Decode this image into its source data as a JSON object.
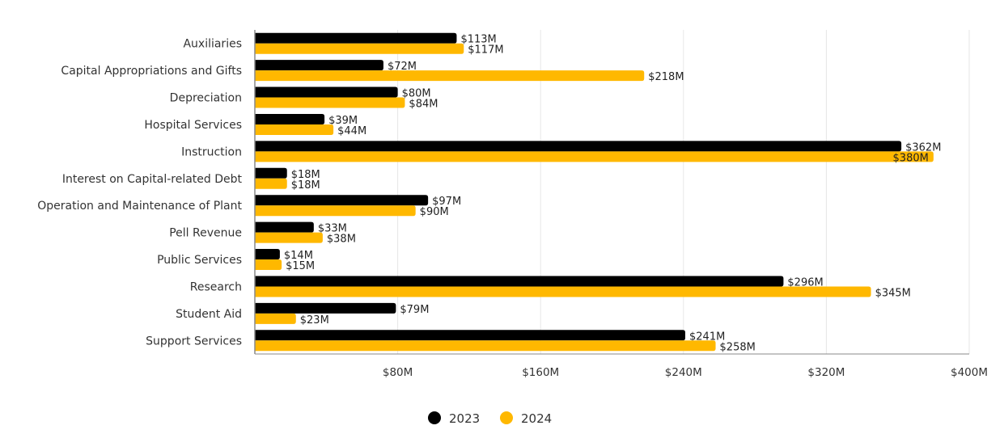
{
  "chart_data": {
    "type": "bar",
    "orientation": "horizontal",
    "categories": [
      "Auxiliaries",
      "Capital Appropriations and Gifts",
      "Depreciation",
      "Hospital Services",
      "Instruction",
      "Interest on Capital-related Debt",
      "Operation and Maintenance of Plant",
      "Pell Revenue",
      "Public Services",
      "Research",
      "Student Aid",
      "Support Services"
    ],
    "series": [
      {
        "name": "2023",
        "color": "#000000",
        "values": [
          113,
          72,
          80,
          39,
          362,
          18,
          97,
          33,
          14,
          296,
          79,
          241
        ],
        "labels": [
          "$113M",
          "$72M",
          "$80M",
          "$39M",
          "$362M",
          "$18M",
          "$97M",
          "$33M",
          "$14M",
          "$296M",
          "$79M",
          "$241M"
        ]
      },
      {
        "name": "2024",
        "color": "#FFB800",
        "values": [
          117,
          218,
          84,
          44,
          380,
          18,
          90,
          38,
          15,
          345,
          23,
          258
        ],
        "labels": [
          "$117M",
          "$218M",
          "$84M",
          "$44M",
          "$380M",
          "$18M",
          "$90M",
          "$38M",
          "$15M",
          "$345M",
          "$23M",
          "$258M"
        ]
      }
    ],
    "xlim": [
      0,
      400
    ],
    "xticks": [
      80,
      160,
      240,
      320,
      400
    ],
    "xtick_labels": [
      "$80M",
      "$160M",
      "$240M",
      "$320M",
      "$400M"
    ],
    "grid": true,
    "legend_position": "bottom"
  }
}
